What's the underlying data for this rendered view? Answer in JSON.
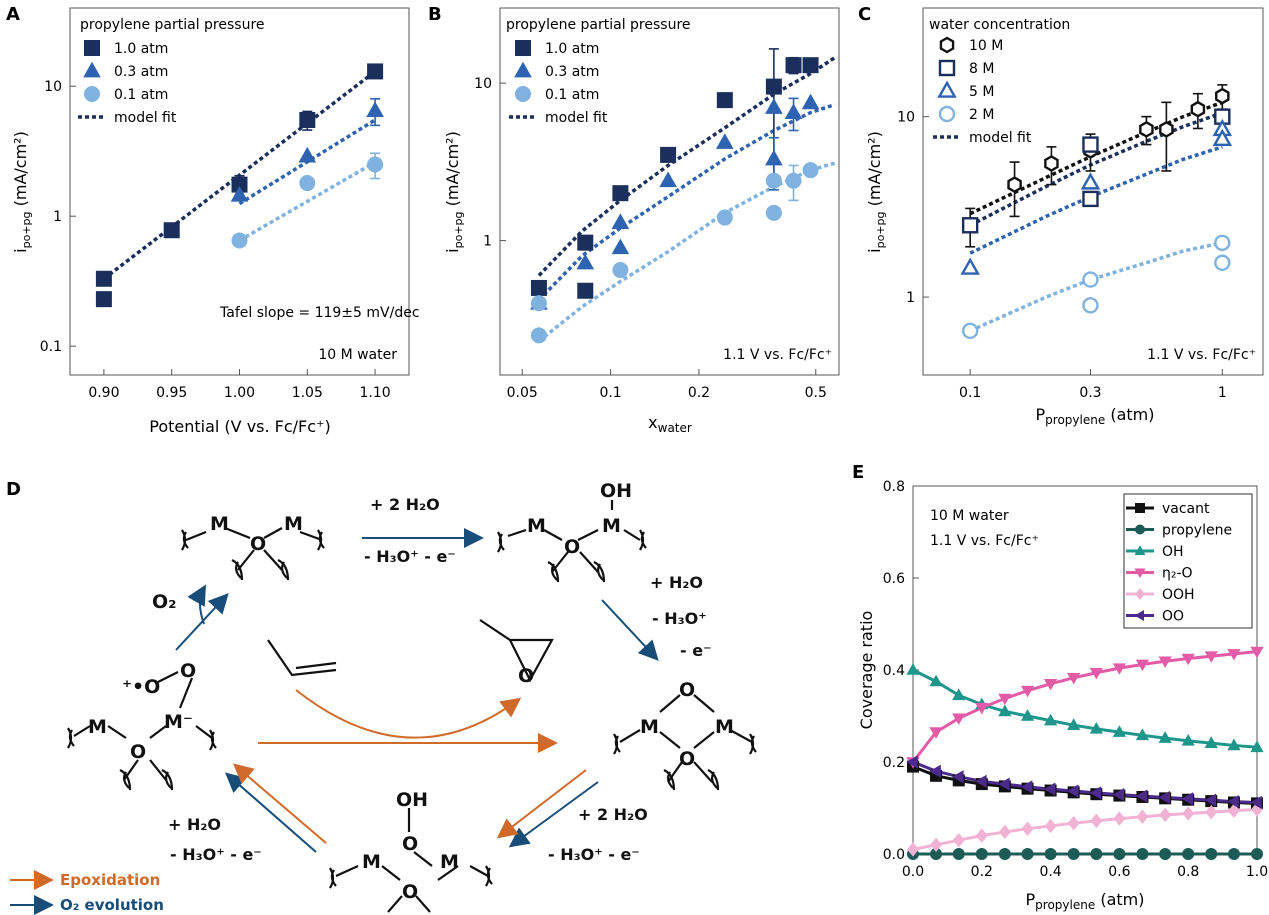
{
  "panels": {
    "A": {
      "letter": "A",
      "legend_title": "propylene partial pressure",
      "xlabel": "Potential (V vs. Fc/Fc⁺)",
      "ylabel": "i",
      "ylabel_sub": "po+pg",
      "ylabel_unit": " (mA/cm²)",
      "annotation": "Tafel slope = 119±5 mV/dec",
      "corner_note": "10 M water"
    },
    "B": {
      "letter": "B",
      "legend_title": "propylene partial pressure",
      "xlabel": "x",
      "xlabel_sub": "water",
      "ylabel": "i",
      "ylabel_sub": "po+pg",
      "ylabel_unit": " (mA/cm²)",
      "corner_note": "1.1 V vs. Fc/Fc⁺"
    },
    "C": {
      "letter": "C",
      "legend_title": "water concentration",
      "xlabel": "P",
      "xlabel_sub": "propylene",
      "xlabel_unit": " (atm)",
      "ylabel": "i",
      "ylabel_sub": "po+pg",
      "ylabel_unit": " (mA/cm²)",
      "corner_note": "1.1 V vs. Fc/Fc⁺"
    },
    "D": {
      "letter": "D",
      "legend": [
        {
          "label": "Epoxidation",
          "color": "#cf6a2a"
        },
        {
          "label": "O₂ evolution",
          "color": "#174d78"
        }
      ],
      "steps": {
        "top_above": "+ 2 H₂O",
        "top_below": "- H₃O⁺ - e⁻",
        "right_1": "+ H₂O",
        "right_2": "- H₃O⁺",
        "right_3": "- e⁻",
        "bottom_1": "+ 2 H₂O",
        "bottom_2": "- H₃O⁺ - e⁻",
        "left_1": "+ H₂O",
        "left_2": "- H₃O⁺  - e⁻",
        "o2": "O₂"
      },
      "atoms": {
        "M": "M",
        "O": "O",
        "OH": "OH",
        "M_minus": "M⁻",
        "O_plus": "⁺•O"
      }
    },
    "E": {
      "letter": "E",
      "note_1": "10 M water",
      "note_2": "1.1 V vs. Fc/Fc⁺",
      "xlabel": "P",
      "xlabel_sub": "propylene",
      "xlabel_unit": " (atm)",
      "ylabel": "Coverage ratio"
    }
  },
  "chart_data": [
    {
      "panel": "A",
      "type": "scatter",
      "xscale": "linear",
      "yscale": "log",
      "xlim": [
        0.875,
        1.125
      ],
      "ylim": [
        0.06,
        40
      ],
      "xticks": [
        0.9,
        0.95,
        1.0,
        1.05,
        1.1
      ],
      "xtick_labels": [
        "0.90",
        "0.95",
        "1.00",
        "1.05",
        "1.10"
      ],
      "yticks": [
        0.1,
        1,
        10
      ],
      "ytick_labels": [
        "0.1",
        "1",
        "10"
      ],
      "series": [
        {
          "name": "1.0 atm",
          "marker": "square",
          "color": "#1b2f5c",
          "points": [
            [
              0.9,
              0.33
            ],
            [
              0.9,
              0.23
            ],
            [
              0.95,
              0.78
            ],
            [
              1.0,
              1.75
            ],
            [
              1.05,
              5.5
            ],
            [
              1.1,
              13
            ]
          ],
          "err": [
            0,
            0,
            0,
            0.3,
            0.9,
            1.3
          ]
        },
        {
          "name": "0.3 atm",
          "marker": "triangle",
          "color": "#2d63b0",
          "points": [
            [
              1.0,
              1.45
            ],
            [
              1.05,
              2.9
            ],
            [
              1.1,
              6.5
            ]
          ],
          "err": [
            0,
            0,
            1.5
          ]
        },
        {
          "name": "0.1 atm",
          "marker": "circle",
          "color": "#7fb2de",
          "points": [
            [
              1.0,
              0.65
            ],
            [
              1.05,
              1.8
            ],
            [
              1.1,
              2.5
            ]
          ],
          "err": [
            0,
            0,
            0.55
          ]
        }
      ],
      "fits": [
        {
          "color": "#1b2f5c",
          "points": [
            [
              0.9,
              0.33
            ],
            [
              1.1,
              13
            ]
          ]
        },
        {
          "color": "#2d63b0",
          "points": [
            [
              1.0,
              1.25
            ],
            [
              1.1,
              5.5
            ]
          ]
        },
        {
          "color": "#7fb2de",
          "points": [
            [
              1.0,
              0.65
            ],
            [
              1.1,
              2.6
            ]
          ]
        }
      ],
      "fit_label": "model fit",
      "legend": "top-left"
    },
    {
      "panel": "B",
      "type": "scatter",
      "xscale": "log",
      "yscale": "log",
      "xlim": [
        0.042,
        0.6
      ],
      "ylim": [
        0.14,
        30
      ],
      "xticks": [
        0.05,
        0.1,
        0.2,
        0.5
      ],
      "xtick_labels": [
        "0.05",
        "0.1",
        "0.2",
        "0.5"
      ],
      "yticks": [
        1,
        10
      ],
      "ytick_labels": [
        "1",
        "10"
      ],
      "series": [
        {
          "name": "1.0 atm",
          "marker": "square",
          "color": "#1b2f5c",
          "points": [
            [
              0.057,
              0.5
            ],
            [
              0.082,
              0.97
            ],
            [
              0.082,
              0.48
            ],
            [
              0.108,
              2.0
            ],
            [
              0.157,
              3.5
            ],
            [
              0.245,
              7.8
            ],
            [
              0.36,
              9.5
            ],
            [
              0.42,
              13
            ],
            [
              0.48,
              13
            ]
          ],
          "err": [
            0,
            0,
            0,
            0,
            0,
            0,
            7,
            1.5,
            0
          ]
        },
        {
          "name": "0.3 atm",
          "marker": "triangle",
          "color": "#2d63b0",
          "points": [
            [
              0.057,
              0.4
            ],
            [
              0.082,
              0.72
            ],
            [
              0.108,
              0.9
            ],
            [
              0.108,
              1.3
            ],
            [
              0.157,
              2.4
            ],
            [
              0.245,
              4.2
            ],
            [
              0.36,
              7.0
            ],
            [
              0.36,
              3.3
            ],
            [
              0.42,
              6.5
            ],
            [
              0.48,
              7.5
            ]
          ],
          "err": [
            0,
            0,
            0,
            0,
            0,
            0,
            0,
            1.2,
            1.5,
            0
          ]
        },
        {
          "name": "0.1 atm",
          "marker": "circle",
          "color": "#7fb2de",
          "points": [
            [
              0.057,
              0.25
            ],
            [
              0.057,
              0.4
            ],
            [
              0.108,
              0.65
            ],
            [
              0.245,
              1.4
            ],
            [
              0.36,
              2.4
            ],
            [
              0.36,
              1.5
            ],
            [
              0.42,
              2.4
            ],
            [
              0.48,
              2.8
            ]
          ],
          "err": [
            0,
            0,
            0,
            0,
            0,
            0,
            0.6,
            0
          ]
        }
      ],
      "fits": [
        {
          "color": "#1b2f5c",
          "points": [
            [
              0.057,
              0.6
            ],
            [
              0.08,
              1.15
            ],
            [
              0.108,
              1.8
            ],
            [
              0.157,
              3.0
            ],
            [
              0.245,
              5.2
            ],
            [
              0.36,
              8.5
            ],
            [
              0.48,
              11.5
            ],
            [
              0.58,
              14.5
            ]
          ]
        },
        {
          "color": "#2d63b0",
          "points": [
            [
              0.057,
              0.42
            ],
            [
              0.08,
              0.8
            ],
            [
              0.108,
              1.2
            ],
            [
              0.157,
              1.9
            ],
            [
              0.245,
              3.3
            ],
            [
              0.36,
              5.0
            ],
            [
              0.48,
              6.5
            ],
            [
              0.58,
              7.3
            ]
          ]
        },
        {
          "color": "#7fb2de",
          "points": [
            [
              0.057,
              0.23
            ],
            [
              0.08,
              0.38
            ],
            [
              0.108,
              0.55
            ],
            [
              0.157,
              0.85
            ],
            [
              0.245,
              1.5
            ],
            [
              0.36,
              2.2
            ],
            [
              0.48,
              2.8
            ],
            [
              0.58,
              3.1
            ]
          ]
        }
      ],
      "fit_label": "model fit",
      "legend": "top-left"
    },
    {
      "panel": "C",
      "type": "scatter",
      "xscale": "log",
      "yscale": "log",
      "xlim": [
        0.065,
        1.45
      ],
      "ylim": [
        0.37,
        40
      ],
      "xticks": [
        0.1,
        0.3,
        1
      ],
      "xtick_labels": [
        "0.1",
        "0.3",
        "1"
      ],
      "yticks": [
        1,
        10
      ],
      "ytick_labels": [
        "1",
        "10"
      ],
      "series": [
        {
          "name": "10 M",
          "marker": "hexagon",
          "color": "#111111",
          "points": [
            [
              0.1,
              2.5
            ],
            [
              0.15,
              4.2
            ],
            [
              0.21,
              5.5
            ],
            [
              0.3,
              6.5
            ],
            [
              0.5,
              8.5
            ],
            [
              0.6,
              8.5
            ],
            [
              0.8,
              11
            ],
            [
              1.0,
              13
            ]
          ],
          "err": [
            0.6,
            1.4,
            1.3,
            1.5,
            1.5,
            3.5,
            2.4,
            2.0
          ]
        },
        {
          "name": "8 M",
          "marker": "square-open",
          "color": "#1b2f5c",
          "points": [
            [
              0.1,
              2.5
            ],
            [
              0.3,
              7.0
            ],
            [
              0.3,
              3.5
            ],
            [
              1.0,
              10
            ]
          ],
          "err": [
            0,
            0,
            0,
            0
          ]
        },
        {
          "name": "5 M",
          "marker": "triangle-open",
          "color": "#2d63b0",
          "points": [
            [
              0.1,
              1.45
            ],
            [
              0.3,
              4.3
            ],
            [
              1.0,
              8.5
            ],
            [
              1.0,
              7.5
            ]
          ],
          "err": [
            0,
            0,
            0,
            0
          ]
        },
        {
          "name": "2 M",
          "marker": "circle-open",
          "color": "#7fb2de",
          "points": [
            [
              0.1,
              0.65
            ],
            [
              0.3,
              1.25
            ],
            [
              0.3,
              0.9
            ],
            [
              1.0,
              2.0
            ],
            [
              1.0,
              1.55
            ]
          ],
          "err": [
            0,
            0,
            0,
            0,
            0
          ]
        }
      ],
      "fits": [
        {
          "color": "#111111",
          "points": [
            [
              0.1,
              2.9
            ],
            [
              0.2,
              4.6
            ],
            [
              0.3,
              6.0
            ],
            [
              0.5,
              8.2
            ],
            [
              0.7,
              10.0
            ],
            [
              1.0,
              12.0
            ]
          ]
        },
        {
          "color": "#1b2f5c",
          "points": [
            [
              0.1,
              2.5
            ],
            [
              0.2,
              4.1
            ],
            [
              0.3,
              5.4
            ],
            [
              0.5,
              7.3
            ],
            [
              0.7,
              8.8
            ],
            [
              1.0,
              10.5
            ]
          ]
        },
        {
          "color": "#2d63b0",
          "points": [
            [
              0.1,
              1.75
            ],
            [
              0.2,
              2.8
            ],
            [
              0.3,
              3.6
            ],
            [
              0.5,
              4.8
            ],
            [
              0.7,
              5.8
            ],
            [
              1.0,
              6.8
            ]
          ]
        },
        {
          "color": "#7fb2de",
          "points": [
            [
              0.1,
              0.65
            ],
            [
              0.2,
              1.0
            ],
            [
              0.3,
              1.25
            ],
            [
              0.5,
              1.55
            ],
            [
              0.7,
              1.8
            ],
            [
              1.0,
              2.0
            ]
          ]
        }
      ],
      "fit_label": "model fit",
      "legend": "top-left"
    },
    {
      "panel": "E",
      "type": "line",
      "xscale": "linear",
      "yscale": "linear",
      "xlim": [
        0,
        1
      ],
      "ylim": [
        0,
        0.8
      ],
      "xticks": [
        0,
        0.2,
        0.4,
        0.6,
        0.8,
        1.0
      ],
      "xtick_labels": [
        "0.0",
        "0.2",
        "0.4",
        "0.6",
        "0.8",
        "1.0"
      ],
      "yticks": [
        0,
        0.2,
        0.4,
        0.6,
        0.8
      ],
      "ytick_labels": [
        "0.0",
        "0.2",
        "0.4",
        "0.6",
        "0.8"
      ],
      "x": [
        0,
        0.067,
        0.133,
        0.2,
        0.267,
        0.333,
        0.4,
        0.467,
        0.533,
        0.6,
        0.667,
        0.733,
        0.8,
        0.867,
        0.933,
        1.0
      ],
      "series": [
        {
          "name": "vacant",
          "marker": "square",
          "color": "#111111",
          "values": [
            0.19,
            0.17,
            0.16,
            0.152,
            0.147,
            0.142,
            0.138,
            0.134,
            0.13,
            0.127,
            0.124,
            0.121,
            0.118,
            0.115,
            0.112,
            0.11
          ]
        },
        {
          "name": "propylene",
          "marker": "circle",
          "color": "#1d5b57",
          "values": [
            0,
            0,
            0,
            0,
            0,
            0,
            0,
            0,
            0,
            0,
            0,
            0,
            0,
            0,
            0,
            0
          ]
        },
        {
          "name": "OH",
          "marker": "triangle",
          "color": "#1e968c",
          "values": [
            0.4,
            0.375,
            0.345,
            0.325,
            0.31,
            0.3,
            0.29,
            0.28,
            0.272,
            0.265,
            0.258,
            0.252,
            0.246,
            0.241,
            0.236,
            0.232
          ]
        },
        {
          "name": "η₂-O",
          "marker": "triangle-down",
          "color": "#e35aa6",
          "values": [
            0.2,
            0.265,
            0.295,
            0.318,
            0.338,
            0.355,
            0.37,
            0.383,
            0.394,
            0.404,
            0.412,
            0.419,
            0.425,
            0.43,
            0.435,
            0.44
          ]
        },
        {
          "name": "OOH",
          "marker": "diamond",
          "color": "#f2b2d4",
          "values": [
            0.01,
            0.02,
            0.03,
            0.04,
            0.048,
            0.055,
            0.061,
            0.067,
            0.072,
            0.077,
            0.081,
            0.085,
            0.088,
            0.091,
            0.094,
            0.097
          ]
        },
        {
          "name": "OO",
          "marker": "triangle-left",
          "color": "#4b2a8c",
          "values": [
            0.2,
            0.18,
            0.168,
            0.158,
            0.152,
            0.146,
            0.141,
            0.137,
            0.133,
            0.129,
            0.126,
            0.123,
            0.12,
            0.117,
            0.114,
            0.112
          ]
        }
      ],
      "legend": "top-right"
    }
  ]
}
